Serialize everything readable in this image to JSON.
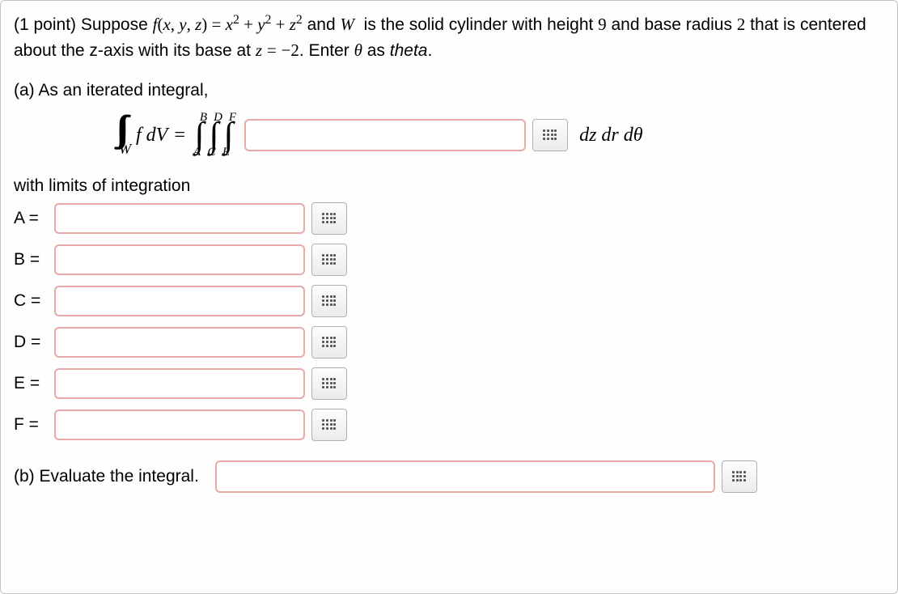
{
  "problem": {
    "points_prefix": "(1 point) Suppose ",
    "height": "9",
    "radius": "2",
    "base_z": "−2",
    "theta_note": "theta"
  },
  "part_a": {
    "label": "(a) As an iterated integral,",
    "region": "W",
    "integrand": "f dV",
    "equals": "=",
    "bounds_upper": [
      "B",
      "D",
      "F"
    ],
    "bounds_lower": [
      "A",
      "C",
      "E"
    ],
    "differentials": "dz dr dθ",
    "limits_intro": "with limits of integration",
    "limits": [
      {
        "label": "A ="
      },
      {
        "label": "B ="
      },
      {
        "label": "C ="
      },
      {
        "label": "D ="
      },
      {
        "label": "E ="
      },
      {
        "label": "F ="
      }
    ]
  },
  "part_b": {
    "label": "(b) Evaluate the integral."
  },
  "style": {
    "input_border": "#e8a9a9",
    "frame_border": "#c4c4c4",
    "background": "#fefefe"
  }
}
